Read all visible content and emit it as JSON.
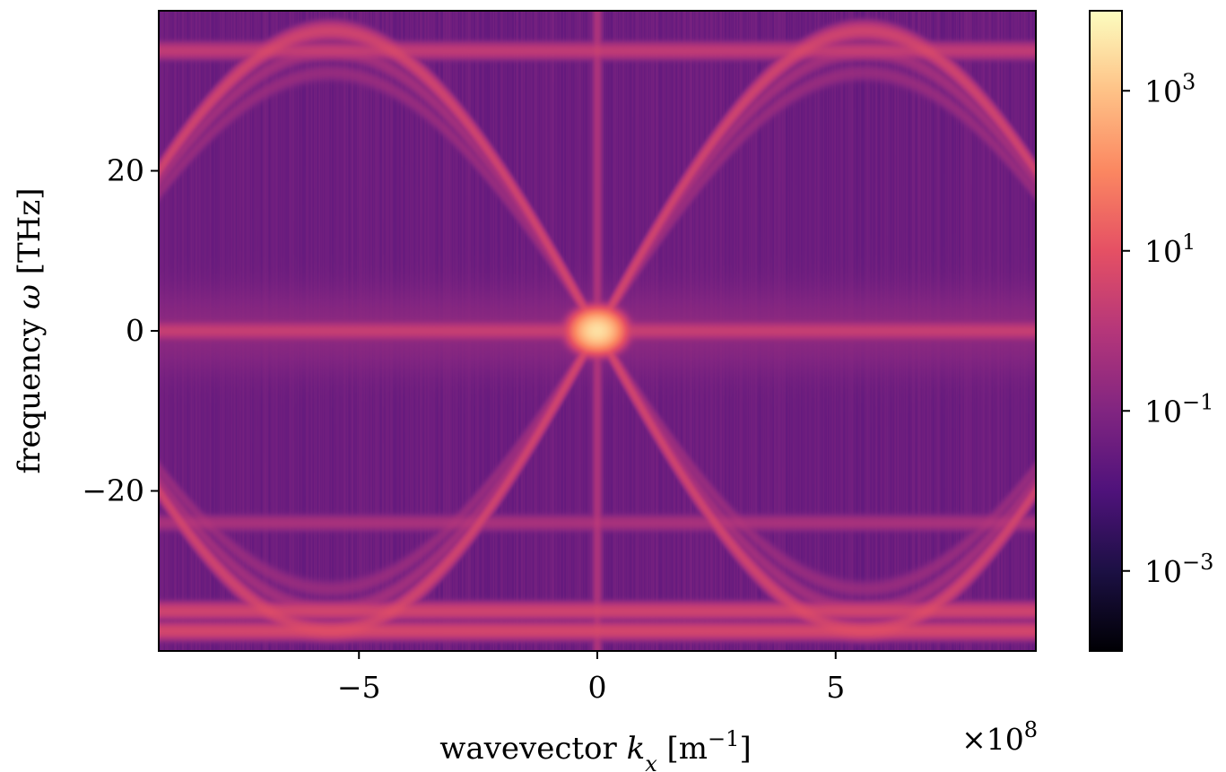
{
  "chart_data": {
    "type": "heatmap",
    "colormap": "magma",
    "color_scale": "log",
    "title": "",
    "xlabel_text": "wavevector ",
    "xlabel_var": "k",
    "xlabel_sub": "x",
    "xlabel_unit_open": " [m",
    "xlabel_unit_sup": "−1",
    "xlabel_unit_close": "]",
    "ylabel_text": "frequency ",
    "ylabel_var": "ω",
    "ylabel_unit": " [THz]",
    "x_offset_base": "×10",
    "x_offset_exp": "8",
    "xlim": [
      -9.2,
      9.2
    ],
    "ylim": [
      -40,
      40
    ],
    "xticks": [
      {
        "value": -5,
        "label": "−5"
      },
      {
        "value": 0,
        "label": "0"
      },
      {
        "value": 5,
        "label": "5"
      }
    ],
    "yticks": [
      {
        "value": 20,
        "label": "20"
      },
      {
        "value": 0,
        "label": "0"
      },
      {
        "value": -20,
        "label": "−20"
      }
    ],
    "colorbar": {
      "range_log10": [
        -4,
        4
      ],
      "ticks": [
        {
          "log10": 3,
          "base": "10",
          "exp": "3"
        },
        {
          "log10": 1,
          "base": "10",
          "exp": "1"
        },
        {
          "log10": -1,
          "base": "10",
          "exp": "−1"
        },
        {
          "log10": -3,
          "base": "10",
          "exp": "−3"
        }
      ]
    },
    "features": {
      "background_log10": -1.4,
      "bands": {
        "f_max": 37.5,
        "k_period": 11.2
      },
      "flat_lines": [
        {
          "y": 0,
          "log10": 0.3
        },
        {
          "y": 35,
          "log10": 0.2
        },
        {
          "y": -35,
          "log10": 0.5
        },
        {
          "y": -37.5,
          "log10": 0.6
        },
        {
          "y": -24,
          "log10": -0.3
        }
      ],
      "vertical_line": {
        "x": 0,
        "log10": -0.2
      },
      "center_peak_log10": 3.5
    }
  }
}
